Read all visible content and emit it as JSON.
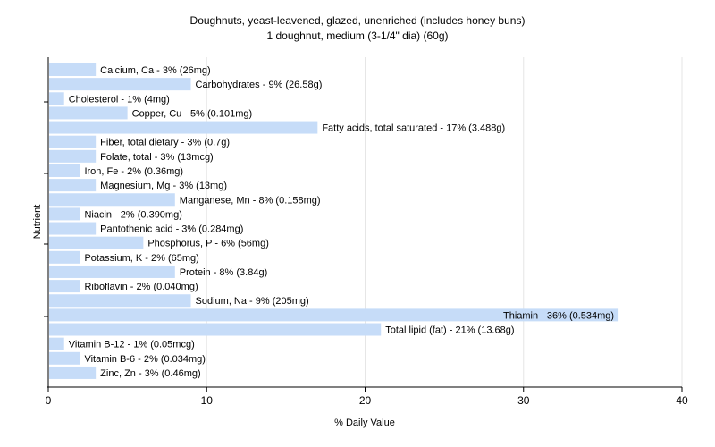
{
  "chart_data": {
    "type": "bar",
    "orientation": "horizontal",
    "title": "Doughnuts, yeast-leavened, glazed, unenriched (includes honey buns)",
    "subtitle": "1 doughnut, medium (3-1/4\" dia) (60g)",
    "xlabel": "% Daily Value",
    "ylabel": "Nutrient",
    "xlim": [
      0,
      40
    ],
    "xticks": [
      0,
      10,
      20,
      30,
      40
    ],
    "grid": true,
    "bar_color": "#c6dcf8",
    "categories": [
      "Calcium, Ca",
      "Carbohydrates",
      "Cholesterol",
      "Copper, Cu",
      "Fatty acids, total saturated",
      "Fiber, total dietary",
      "Folate, total",
      "Iron, Fe",
      "Magnesium, Mg",
      "Manganese, Mn",
      "Niacin",
      "Pantothenic acid",
      "Phosphorus, P",
      "Potassium, K",
      "Protein",
      "Riboflavin",
      "Sodium, Na",
      "Thiamin",
      "Total lipid (fat)",
      "Vitamin B-12",
      "Vitamin B-6",
      "Zinc, Zn"
    ],
    "values": [
      3,
      9,
      1,
      5,
      17,
      3,
      3,
      2,
      3,
      8,
      2,
      3,
      6,
      2,
      8,
      2,
      9,
      36,
      21,
      1,
      2,
      3
    ],
    "labels": [
      "Calcium, Ca - 3% (26mg)",
      "Carbohydrates - 9% (26.58g)",
      "Cholesterol - 1% (4mg)",
      "Copper, Cu - 5% (0.101mg)",
      "Fatty acids, total saturated - 17% (3.488g)",
      "Fiber, total dietary - 3% (0.7g)",
      "Folate, total - 3% (13mcg)",
      "Iron, Fe - 2% (0.36mg)",
      "Magnesium, Mg - 3% (13mg)",
      "Manganese, Mn - 8% (0.158mg)",
      "Niacin - 2% (0.390mg)",
      "Pantothenic acid - 3% (0.284mg)",
      "Phosphorus, P - 6% (56mg)",
      "Potassium, K - 2% (65mg)",
      "Protein - 8% (3.84g)",
      "Riboflavin - 2% (0.040mg)",
      "Sodium, Na - 9% (205mg)",
      "Thiamin - 36% (0.534mg)",
      "Total lipid (fat) - 21% (13.68g)",
      "Vitamin B-12 - 1% (0.05mcg)",
      "Vitamin B-6 - 2% (0.034mg)",
      "Zinc, Zn - 3% (0.46mg)"
    ]
  }
}
